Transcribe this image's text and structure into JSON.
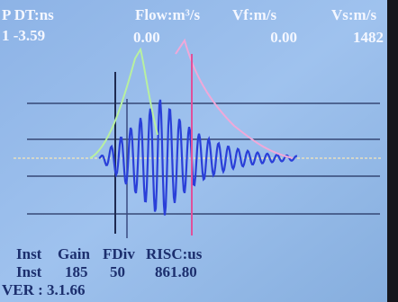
{
  "header": {
    "labels": [
      "P DT:ns",
      "Flow:m³/s",
      "Vf:m/s",
      "Vs:m/s"
    ],
    "values": [
      "1 -3.59",
      "0.00",
      "0.00",
      "1482"
    ]
  },
  "footer": {
    "rows": [
      [
        "Inst",
        "Gain",
        "FDiv",
        "RISC:us"
      ],
      [
        "Inst",
        "185",
        "50",
        "861.80"
      ]
    ],
    "version": "VER : 3.1.66"
  }
}
